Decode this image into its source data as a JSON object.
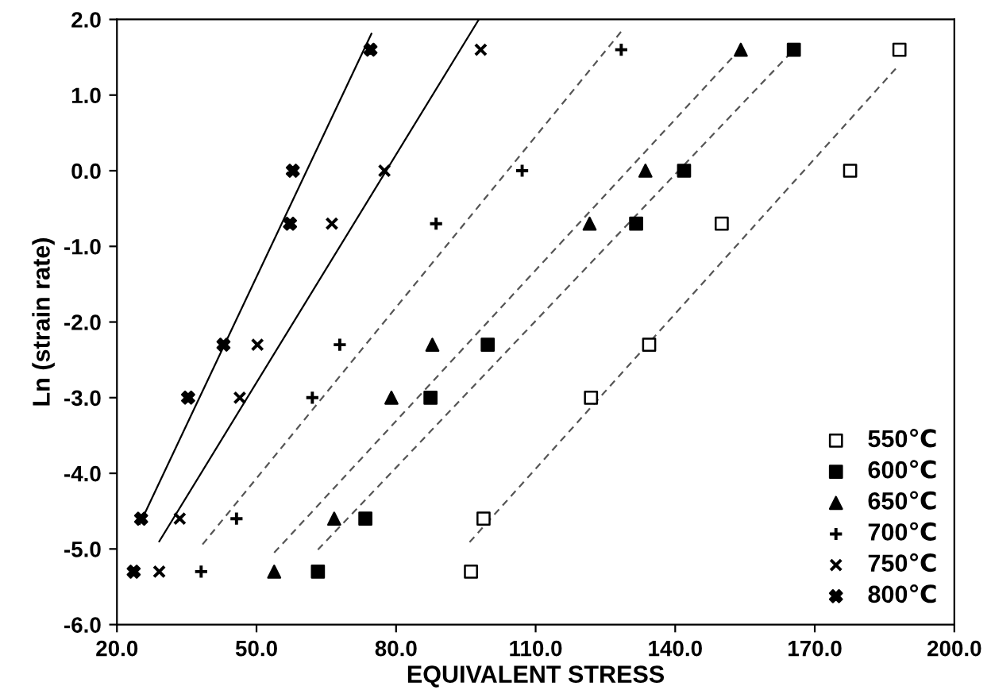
{
  "chart_data": {
    "type": "scatter",
    "xlabel": "EQUIVALENT STRESS",
    "ylabel": "Ln (strain rate)",
    "xlim": [
      20,
      200
    ],
    "ylim": [
      -6,
      2
    ],
    "xticks": [
      {
        "value": 20,
        "label": "20.0"
      },
      {
        "value": 50,
        "label": "50.0"
      },
      {
        "value": 80,
        "label": "80.0"
      },
      {
        "value": 110,
        "label": "110.0"
      },
      {
        "value": 140,
        "label": "140.0"
      },
      {
        "value": 170,
        "label": "170.0"
      },
      {
        "value": 200,
        "label": "200.0"
      }
    ],
    "yticks": [
      {
        "value": -6,
        "label": "-6.0"
      },
      {
        "value": -5,
        "label": "-5.0"
      },
      {
        "value": -4,
        "label": "-4.0"
      },
      {
        "value": -3,
        "label": "-3.0"
      },
      {
        "value": -2,
        "label": "-2.0"
      },
      {
        "value": -1,
        "label": "-1.0"
      },
      {
        "value": 0,
        "label": "0.0"
      },
      {
        "value": 1,
        "label": "1.0"
      },
      {
        "value": 2,
        "label": "2.0"
      }
    ],
    "grid": false,
    "legend": "bottom right",
    "series": [
      {
        "name": "550℃",
        "marker": "square",
        "color": "#ffffff",
        "x": [
          96.1,
          98.8,
          121.9,
          134.4,
          150.0,
          177.6,
          188.2
        ],
        "values": [
          -5.3,
          -4.6,
          -3.0,
          -2.3,
          -0.7,
          0.0,
          1.6
        ]
      },
      {
        "name": "600℃",
        "marker": "square",
        "color": "#000000",
        "x": [
          63.2,
          73.4,
          87.4,
          99.7,
          131.6,
          141.9,
          165.5
        ],
        "values": [
          -5.3,
          -4.6,
          -3.0,
          -2.3,
          -0.7,
          0.0,
          1.6
        ]
      },
      {
        "name": "650℃",
        "marker": "triangle",
        "color": "#000000",
        "x": [
          53.8,
          66.7,
          79.0,
          87.8,
          121.6,
          133.6,
          154.1
        ],
        "values": [
          -5.3,
          -4.6,
          -3.0,
          -2.3,
          -0.7,
          0.0,
          1.6
        ]
      },
      {
        "name": "700℃",
        "marker": "cross",
        "color": "#000000",
        "x": [
          38.1,
          45.7,
          62.0,
          67.9,
          88.6,
          107.1,
          128.4
        ],
        "values": [
          -5.3,
          -4.6,
          -3.0,
          -2.3,
          -0.7,
          0.0,
          1.6
        ]
      },
      {
        "name": "750℃",
        "marker": "x",
        "color": "#000000",
        "x": [
          29.1,
          33.5,
          46.4,
          50.2,
          66.2,
          77.5,
          98.2
        ],
        "values": [
          -5.3,
          -4.6,
          -3.0,
          -2.3,
          -0.7,
          0.0,
          1.6
        ]
      },
      {
        "name": "800℃",
        "marker": "X",
        "color": "#000000",
        "x": [
          23.6,
          25.2,
          35.3,
          42.9,
          57.2,
          57.8,
          74.5
        ],
        "values": [
          -5.3,
          -4.6,
          -3.0,
          -2.3,
          -0.7,
          0.0,
          1.6
        ]
      },
      {
        "type": "line",
        "marker": "none",
        "line_style": "dashed",
        "color": "#555555",
        "x": [
          95.8,
          188.0
        ],
        "values": [
          -4.91,
          1.39
        ]
      },
      {
        "type": "line",
        "marker": "none",
        "line_style": "dashed",
        "color": "#555555",
        "x": [
          63.2,
          164.4
        ],
        "values": [
          -5.01,
          1.53
        ]
      },
      {
        "type": "line",
        "marker": "none",
        "line_style": "dashed",
        "color": "#555555",
        "x": [
          53.8,
          154.6
        ],
        "values": [
          -5.05,
          1.65
        ]
      },
      {
        "type": "line",
        "marker": "none",
        "line_style": "dashed",
        "color": "#555555",
        "x": [
          38.4,
          128.4
        ],
        "values": [
          -4.94,
          1.84
        ]
      },
      {
        "type": "line",
        "marker": "none",
        "line_style": "solid",
        "color": "#000000",
        "x": [
          29.1,
          97.8
        ],
        "values": [
          -4.9,
          2.0
        ]
      },
      {
        "type": "line",
        "marker": "none",
        "line_style": "solid",
        "color": "#000000",
        "x": [
          24.9,
          74.7
        ],
        "values": [
          -4.67,
          1.81
        ]
      }
    ]
  }
}
